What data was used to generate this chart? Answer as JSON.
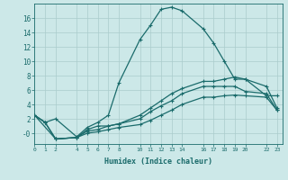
{
  "xlabel": "Humidex (Indice chaleur)",
  "background_color": "#cce8e8",
  "grid_color": "#aacccc",
  "line_color": "#1a6b6b",
  "line1_x": [
    0,
    1,
    2,
    4,
    5,
    6,
    7,
    8,
    10,
    11,
    12,
    13,
    14,
    16,
    17,
    18,
    19,
    20,
    22,
    23
  ],
  "line1_y": [
    2.5,
    1.5,
    2.0,
    -0.5,
    0.8,
    1.5,
    2.5,
    7.0,
    13.0,
    15.0,
    17.2,
    17.5,
    17.0,
    14.5,
    12.5,
    10.0,
    7.5,
    7.5,
    5.2,
    5.2
  ],
  "line2_x": [
    0,
    1,
    2,
    4,
    5,
    6,
    7,
    8,
    10,
    11,
    12,
    13,
    14,
    16,
    17,
    18,
    19,
    20,
    22,
    23
  ],
  "line2_y": [
    2.5,
    1.5,
    -0.8,
    -0.6,
    0.5,
    1.0,
    1.0,
    1.3,
    2.5,
    3.5,
    4.5,
    5.5,
    6.2,
    7.2,
    7.2,
    7.5,
    7.8,
    7.5,
    6.5,
    3.5
  ],
  "line3_x": [
    0,
    1,
    2,
    4,
    5,
    6,
    7,
    8,
    10,
    11,
    12,
    13,
    14,
    16,
    17,
    18,
    19,
    20,
    22,
    23
  ],
  "line3_y": [
    2.5,
    1.5,
    -0.8,
    -0.6,
    0.3,
    0.5,
    1.0,
    1.3,
    2.0,
    3.0,
    3.8,
    4.5,
    5.5,
    6.5,
    6.5,
    6.5,
    6.5,
    5.8,
    5.5,
    3.2
  ],
  "line4_x": [
    0,
    2,
    4,
    5,
    6,
    7,
    8,
    10,
    11,
    12,
    13,
    14,
    16,
    17,
    18,
    19,
    20,
    22,
    23
  ],
  "line4_y": [
    2.5,
    -0.8,
    -0.6,
    0.0,
    0.2,
    0.5,
    0.8,
    1.2,
    1.8,
    2.5,
    3.2,
    4.0,
    5.0,
    5.0,
    5.2,
    5.3,
    5.2,
    5.0,
    3.2
  ],
  "xlim": [
    0,
    23.5
  ],
  "ylim": [
    -1.5,
    18.0
  ],
  "yticks": [
    0,
    2,
    4,
    6,
    8,
    10,
    12,
    14,
    16
  ],
  "ytick_labels": [
    "-0",
    "2",
    "4",
    "6",
    "8",
    "10",
    "12",
    "14",
    "16"
  ],
  "xtick_positions": [
    0,
    1,
    2,
    4,
    5,
    6,
    7,
    8,
    10,
    11,
    12,
    13,
    14,
    16,
    17,
    18,
    19,
    20,
    22,
    23
  ],
  "xtick_labels_all": [
    "0",
    "1",
    "2",
    "4",
    "5",
    "6",
    "7",
    "8",
    "10",
    "11",
    "12",
    "13",
    "14",
    "16",
    "17",
    "18",
    "19",
    "20",
    "22",
    "23"
  ]
}
